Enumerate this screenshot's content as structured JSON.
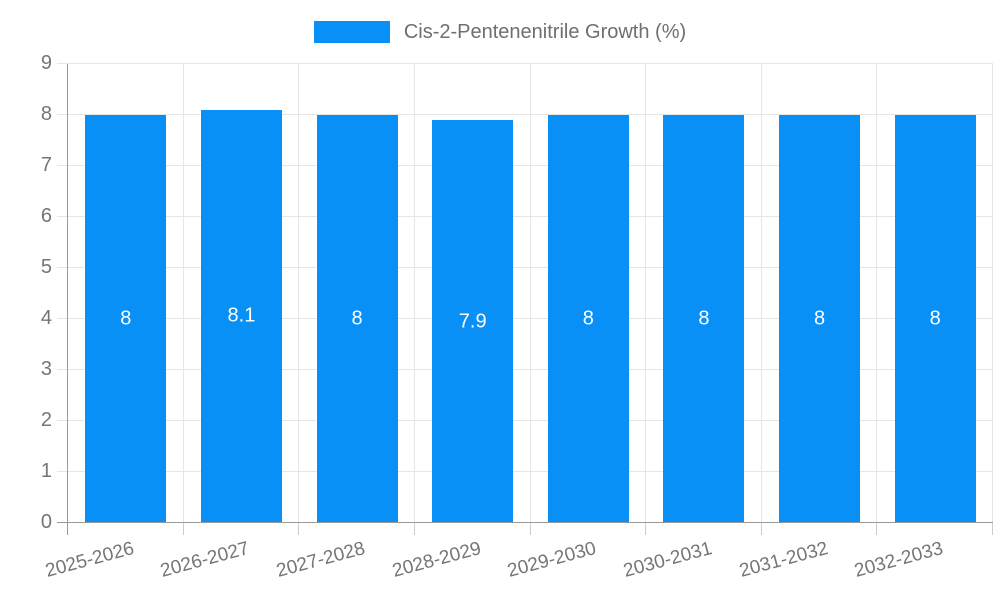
{
  "legend": {
    "label": "Cis-2-Pentenenitrile Growth (%)",
    "swatch_color": "#0890F7"
  },
  "chart_data": {
    "type": "bar",
    "title": "Cis-2-Pentenenitrile Growth (%)",
    "categories": [
      "2025-2026",
      "2026-2027",
      "2027-2028",
      "2028-2029",
      "2029-2030",
      "2030-2031",
      "2031-2032",
      "2032-2033"
    ],
    "values": [
      8,
      8.1,
      8,
      7.9,
      8,
      8,
      8,
      8
    ],
    "bar_labels": [
      "8",
      "8.1",
      "8",
      "7.9",
      "8",
      "8",
      "8",
      "8"
    ],
    "xlabel": "",
    "ylabel": "",
    "ylim": [
      0,
      9
    ],
    "yticks": [
      0,
      1,
      2,
      3,
      4,
      5,
      6,
      7,
      8,
      9
    ],
    "grid": true,
    "legend_position": "top",
    "x_label_rotation_deg": -15,
    "colors": {
      "bar": "#0890F7",
      "grid": "#e6e6e6",
      "axis": "#999999",
      "boundary_tick": "#cccccc",
      "tick_text": "#757575",
      "bar_label": "#ffffff",
      "background": "#ffffff"
    }
  }
}
